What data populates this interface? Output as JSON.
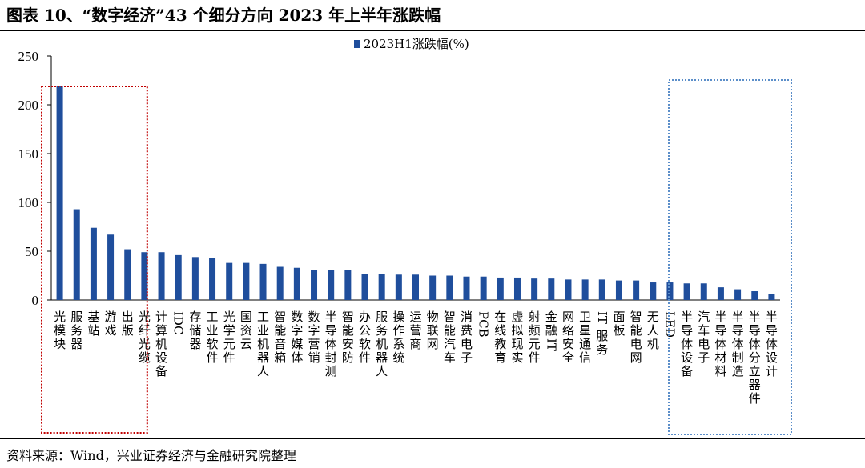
{
  "figure": {
    "title": "图表 10、“数字经济”43 个细分方向 2023 年上半年涨跌幅",
    "source": "资料来源：Wind，兴业证券经济与金融研究院整理"
  },
  "chart_data": {
    "type": "bar",
    "title": "",
    "xlabel": "",
    "ylabel": "",
    "ylim": [
      0,
      250
    ],
    "yticks": [
      0,
      50,
      100,
      150,
      200,
      250
    ],
    "grid": false,
    "legend_position": "top-center",
    "series": [
      {
        "name": "2023H1涨跌幅(%)",
        "color": "#1f4e9c",
        "values": [
          219,
          93,
          74,
          67,
          52,
          49,
          49,
          46,
          44,
          43,
          38,
          38,
          37,
          34,
          33,
          31,
          31,
          31,
          27,
          27,
          26,
          26,
          25,
          25,
          24,
          24,
          23,
          23,
          22,
          22,
          21,
          21,
          21,
          20,
          20,
          18,
          18,
          17,
          17,
          13,
          11,
          9,
          6
        ]
      }
    ],
    "categories": [
      "光模块",
      "服务器",
      "基站",
      "游戏",
      "出版",
      "光纤光缆",
      "计算机设备",
      "IDC",
      "存储器",
      "工业软件",
      "光学元件",
      "国资云",
      "工业机器人",
      "智能音箱",
      "数字媒体",
      "数字营销",
      "半导体封测",
      "智能安防",
      "办公软件",
      "服务机器人",
      "操作系统",
      "运营商",
      "物联网",
      "智能汽车",
      "消费电子",
      "PCB",
      "在线教育",
      "虚拟现实",
      "射频元件",
      "金融IT",
      "网络安全",
      "卫星通信",
      "IT服务",
      "面板",
      "智能电网",
      "无人机",
      "LED",
      "半导体设备",
      "汽车电子",
      "半导体材料",
      "半导体制造",
      "半导体分立器件",
      "半导体设计"
    ],
    "highlights": [
      {
        "from_category": "光模块",
        "to_category": "出版",
        "color": "#c00000",
        "style": "dotted"
      },
      {
        "from_category": "半导体设备",
        "to_category": "半导体设计",
        "color": "#5b8ec9",
        "style": "dotted"
      }
    ]
  }
}
